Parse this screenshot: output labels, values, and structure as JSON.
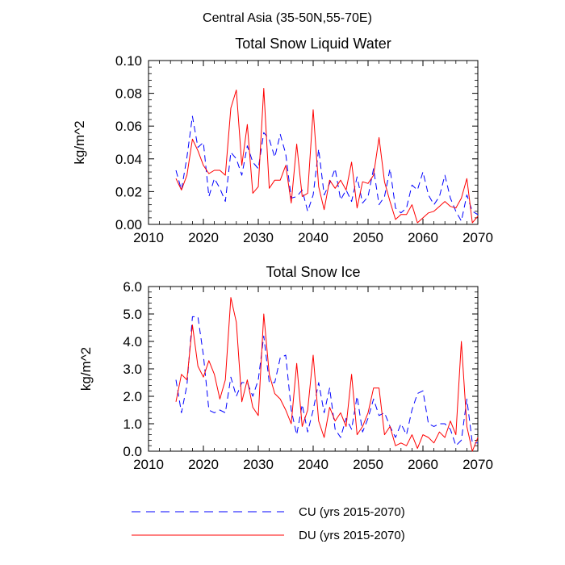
{
  "suptitle": "Central Asia (35-50N,55-70E)",
  "legend": {
    "entries": [
      {
        "label": "CU (yrs 2015-2070)",
        "color": "#0000ff",
        "dash": "dashed"
      },
      {
        "label": "DU (yrs 2015-2070)",
        "color": "#ff0000",
        "dash": "solid"
      }
    ]
  },
  "chart_data": [
    {
      "type": "line",
      "title": "Total Snow Liquid Water",
      "xlabel": "",
      "ylabel": "kg/m^2",
      "xlim": [
        2010,
        2070
      ],
      "ylim": [
        0,
        0.1
      ],
      "xticks": [
        2010,
        2020,
        2030,
        2040,
        2050,
        2060,
        2070
      ],
      "xtick_labels": [
        "2010",
        "2020",
        "2030",
        "2040",
        "2050",
        "2060",
        "2070"
      ],
      "yticks": [
        0,
        0.02,
        0.04,
        0.06,
        0.08,
        0.1
      ],
      "ytick_labels": [
        "0.00",
        "0.02",
        "0.04",
        "0.06",
        "0.08",
        "0.10"
      ],
      "x": [
        2015,
        2016,
        2017,
        2018,
        2019,
        2020,
        2021,
        2022,
        2023,
        2024,
        2025,
        2026,
        2027,
        2028,
        2029,
        2030,
        2031,
        2032,
        2033,
        2034,
        2035,
        2036,
        2037,
        2038,
        2039,
        2040,
        2041,
        2042,
        2043,
        2044,
        2045,
        2046,
        2047,
        2048,
        2049,
        2050,
        2051,
        2052,
        2053,
        2054,
        2055,
        2056,
        2057,
        2058,
        2059,
        2060,
        2061,
        2062,
        2063,
        2064,
        2065,
        2066,
        2067,
        2068,
        2069,
        2070
      ],
      "series": [
        {
          "name": "CU",
          "color": "#0000ff",
          "dash": "dashed",
          "values": [
            0.033,
            0.021,
            0.041,
            0.066,
            0.047,
            0.05,
            0.017,
            0.028,
            0.022,
            0.014,
            0.044,
            0.04,
            0.03,
            0.048,
            0.038,
            0.034,
            0.056,
            0.052,
            0.041,
            0.055,
            0.043,
            0.016,
            0.017,
            0.021,
            0.008,
            0.018,
            0.046,
            0.018,
            0.025,
            0.034,
            0.015,
            0.021,
            0.014,
            0.029,
            0.013,
            0.017,
            0.034,
            0.012,
            0.017,
            0.034,
            0.01,
            0.007,
            0.01,
            0.024,
            0.021,
            0.032,
            0.018,
            0.012,
            0.017,
            0.03,
            0.016,
            0.008,
            0.002,
            0.018,
            0.008,
            0.006
          ]
        },
        {
          "name": "DU",
          "color": "#ff0000",
          "dash": "solid",
          "values": [
            0.028,
            0.021,
            0.03,
            0.052,
            0.045,
            0.036,
            0.031,
            0.033,
            0.033,
            0.03,
            0.071,
            0.082,
            0.036,
            0.061,
            0.019,
            0.023,
            0.083,
            0.022,
            0.027,
            0.027,
            0.036,
            0.013,
            0.049,
            0.017,
            0.019,
            0.07,
            0.023,
            0.009,
            0.027,
            0.022,
            0.027,
            0.021,
            0.038,
            0.01,
            0.026,
            0.025,
            0.03,
            0.053,
            0.026,
            0.014,
            0.003,
            0.006,
            0.006,
            0.012,
            0.001,
            0.004,
            0.007,
            0.008,
            0.011,
            0.014,
            0.011,
            0.01,
            0.016,
            0.028,
            0.001,
            0.005
          ]
        }
      ]
    },
    {
      "type": "line",
      "title": "Total Snow Ice",
      "xlabel": "",
      "ylabel": "kg/m^2",
      "xlim": [
        2010,
        2070
      ],
      "ylim": [
        0,
        6
      ],
      "xticks": [
        2010,
        2020,
        2030,
        2040,
        2050,
        2060,
        2070
      ],
      "xtick_labels": [
        "2010",
        "2020",
        "2030",
        "2040",
        "2050",
        "2060",
        "2070"
      ],
      "yticks": [
        0,
        1,
        2,
        3,
        4,
        5,
        6
      ],
      "ytick_labels": [
        "0.0",
        "1.0",
        "2.0",
        "3.0",
        "4.0",
        "5.0",
        "6.0"
      ],
      "x": [
        2015,
        2016,
        2017,
        2018,
        2019,
        2020,
        2021,
        2022,
        2023,
        2024,
        2025,
        2026,
        2027,
        2028,
        2029,
        2030,
        2031,
        2032,
        2033,
        2034,
        2035,
        2036,
        2037,
        2038,
        2039,
        2040,
        2041,
        2042,
        2043,
        2044,
        2045,
        2046,
        2047,
        2048,
        2049,
        2050,
        2051,
        2052,
        2053,
        2054,
        2055,
        2056,
        2057,
        2058,
        2059,
        2060,
        2061,
        2062,
        2063,
        2064,
        2065,
        2066,
        2067,
        2068,
        2069,
        2070
      ],
      "series": [
        {
          "name": "CU",
          "color": "#0000ff",
          "dash": "dashed",
          "values": [
            2.6,
            1.4,
            2.4,
            4.9,
            4.9,
            3.5,
            1.5,
            1.4,
            1.5,
            1.4,
            2.7,
            2.0,
            2.5,
            2.5,
            2.0,
            2.6,
            4.2,
            2.5,
            2.5,
            3.4,
            3.5,
            1.5,
            0.6,
            1.7,
            0.7,
            1.5,
            2.5,
            1.4,
            2.3,
            0.8,
            0.5,
            1.2,
            0.8,
            2.0,
            0.7,
            1.2,
            1.9,
            1.3,
            1.4,
            0.9,
            0.5,
            1.0,
            0.6,
            1.5,
            2.1,
            2.2,
            1.0,
            0.9,
            1.0,
            1.0,
            0.8,
            0.2,
            0.4,
            1.9,
            0.3,
            0.3
          ]
        },
        {
          "name": "DU",
          "color": "#ff0000",
          "dash": "solid",
          "values": [
            1.8,
            2.8,
            2.6,
            4.6,
            3.1,
            2.7,
            3.3,
            2.8,
            1.9,
            2.6,
            5.6,
            4.7,
            1.8,
            2.6,
            1.6,
            1.3,
            5.0,
            2.8,
            2.1,
            1.9,
            1.5,
            1.0,
            3.2,
            0.9,
            1.5,
            3.5,
            1.1,
            0.5,
            1.6,
            1.1,
            1.4,
            0.9,
            2.8,
            0.6,
            0.9,
            1.4,
            2.3,
            2.3,
            0.6,
            0.9,
            0.2,
            0.3,
            0.2,
            0.6,
            0.1,
            0.6,
            0.5,
            0.3,
            0.7,
            0.5,
            1.1,
            0.6,
            4.0,
            0.9,
            0.0,
            0.5
          ]
        }
      ]
    }
  ]
}
